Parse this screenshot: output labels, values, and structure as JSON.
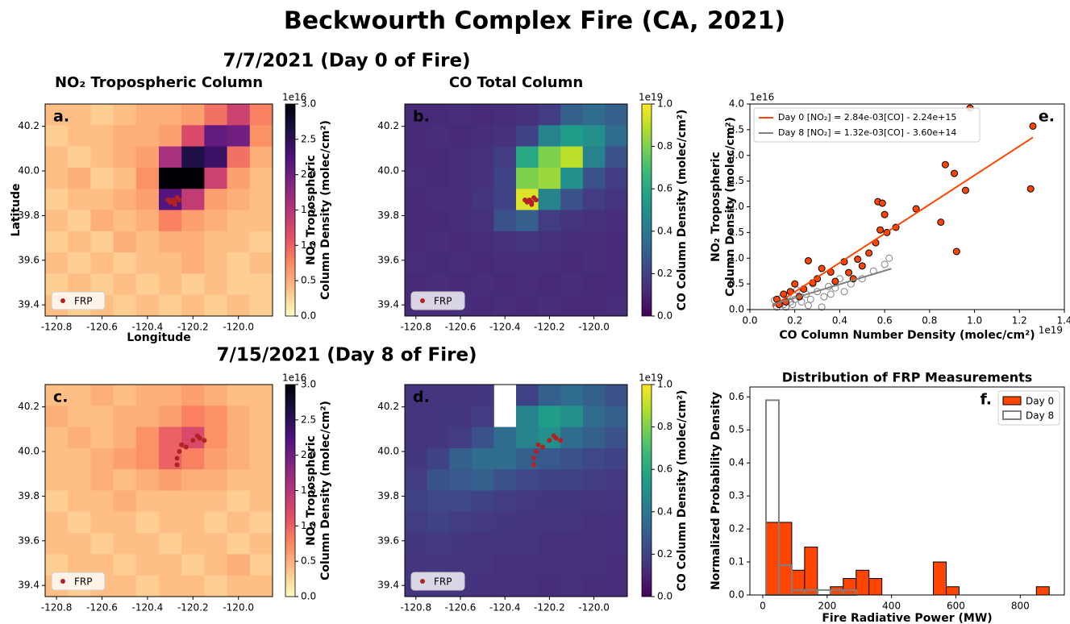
{
  "title": "Beckwourth Complex Fire (CA, 2021)",
  "row_titles": [
    "7/7/2021 (Day 0 of Fire)",
    "7/15/2021 (Day 8 of Fire)"
  ],
  "column_titles": [
    "NO₂ Tropospheric Column",
    "CO Total Column"
  ],
  "chart_data": [
    {
      "type": "heatmap",
      "panel_label": "a.",
      "xlabel": "Longitude",
      "ylabel": "Latitude",
      "xlim": [
        -120.85,
        -119.85
      ],
      "ylim": [
        39.35,
        40.3
      ],
      "xticks": [
        -120.8,
        -120.6,
        -120.4,
        -120.2,
        {
          "value": -120.0,
          "label": "-120.0"
        }
      ],
      "yticks": [
        39.4,
        39.6,
        39.8,
        {
          "value": 40.0,
          "label": "40.0"
        },
        40.2
      ],
      "colormap": "magma_r",
      "zlim": [
        0,
        3
      ],
      "colorbar": {
        "label": [
          "NO₂ Tropospheric",
          "Column Density (molec/cm²)"
        ],
        "offset": "1e16",
        "ticks": [
          {
            "value": 0,
            "label": "0.0"
          },
          0.5,
          {
            "value": 1,
            "label": "1.0"
          },
          1.5,
          {
            "value": 2,
            "label": "2.0"
          },
          2.5,
          {
            "value": 3,
            "label": "3.0"
          }
        ]
      },
      "z": [
        [
          0.4,
          0.4,
          0.3,
          0.4,
          0.5,
          0.5,
          0.6,
          0.9,
          1.3,
          0.8
        ],
        [
          0.3,
          0.4,
          0.4,
          0.5,
          0.5,
          0.6,
          1.2,
          2.1,
          2.0,
          0.7
        ],
        [
          0.4,
          0.3,
          0.4,
          0.5,
          0.6,
          1.6,
          2.6,
          2.4,
          0.9,
          0.5
        ],
        [
          0.4,
          0.5,
          0.3,
          0.4,
          0.7,
          3.0,
          3.0,
          1.3,
          0.6,
          0.4
        ],
        [
          0.3,
          0.4,
          0.4,
          0.5,
          0.6,
          2.2,
          1.4,
          0.6,
          0.5,
          0.4
        ],
        [
          0.4,
          0.3,
          0.5,
          0.4,
          0.5,
          0.8,
          0.6,
          0.5,
          0.4,
          0.4
        ],
        [
          0.3,
          0.4,
          0.3,
          0.5,
          0.4,
          0.5,
          0.5,
          0.4,
          0.4,
          0.3
        ],
        [
          0.4,
          0.3,
          0.4,
          0.3,
          0.4,
          0.4,
          0.5,
          0.4,
          0.3,
          0.4
        ],
        [
          0.3,
          0.4,
          0.3,
          0.4,
          0.3,
          0.4,
          0.3,
          0.4,
          0.3,
          0.3
        ],
        [
          0.4,
          0.3,
          0.4,
          0.3,
          0.4,
          0.3,
          0.4,
          0.3,
          0.4,
          0.3
        ]
      ],
      "points": {
        "name": "FRP",
        "color": "#b22222",
        "x": [
          -120.31,
          -120.29,
          -120.28,
          -120.27,
          -120.3,
          -120.26,
          -120.28
        ],
        "y": [
          39.87,
          39.87,
          39.86,
          39.88,
          39.86,
          39.87,
          39.85
        ]
      },
      "legend": "lower left"
    },
    {
      "type": "heatmap",
      "panel_label": "b.",
      "xlim": [
        -120.85,
        -119.85
      ],
      "ylim": [
        39.35,
        40.3
      ],
      "xticks": [
        -120.8,
        -120.6,
        -120.4,
        -120.2,
        {
          "value": -120.0,
          "label": "-120.0"
        }
      ],
      "yticks": [
        39.4,
        39.6,
        39.8,
        {
          "value": 40.0,
          "label": "40.0"
        },
        40.2
      ],
      "colormap": "viridis",
      "zlim": [
        0,
        1
      ],
      "colorbar": {
        "label": [
          "CO Column Density (molec/cm²)"
        ],
        "offset": "1e19",
        "ticks": [
          {
            "value": 0,
            "label": "0.0"
          },
          0.2,
          0.4,
          0.6,
          0.8,
          {
            "value": 1,
            "label": "1.0"
          }
        ]
      },
      "z": [
        [
          0.12,
          0.12,
          0.13,
          0.12,
          0.13,
          0.14,
          0.18,
          0.3,
          0.35,
          0.3
        ],
        [
          0.12,
          0.13,
          0.12,
          0.13,
          0.14,
          0.2,
          0.45,
          0.55,
          0.5,
          0.35
        ],
        [
          0.12,
          0.12,
          0.13,
          0.14,
          0.18,
          0.6,
          0.8,
          0.9,
          0.45,
          0.25
        ],
        [
          0.13,
          0.12,
          0.13,
          0.14,
          0.2,
          0.8,
          0.85,
          0.5,
          0.25,
          0.18
        ],
        [
          0.12,
          0.13,
          0.13,
          0.15,
          0.2,
          0.95,
          0.45,
          0.25,
          0.18,
          0.15
        ],
        [
          0.12,
          0.12,
          0.13,
          0.14,
          0.25,
          0.3,
          0.18,
          0.15,
          0.14,
          0.13
        ],
        [
          0.12,
          0.13,
          0.12,
          0.13,
          0.14,
          0.15,
          0.14,
          0.13,
          0.13,
          0.12
        ],
        [
          0.13,
          0.12,
          0.13,
          0.12,
          0.13,
          0.13,
          0.13,
          0.12,
          0.13,
          0.12
        ],
        [
          0.12,
          0.13,
          0.12,
          0.13,
          0.12,
          0.13,
          0.12,
          0.13,
          0.12,
          0.12
        ],
        [
          0.12,
          0.12,
          0.13,
          0.12,
          0.13,
          0.12,
          0.13,
          0.12,
          0.12,
          0.13
        ]
      ],
      "points": {
        "name": "FRP",
        "color": "#b22222",
        "x": [
          -120.31,
          -120.29,
          -120.28,
          -120.27,
          -120.3,
          -120.26,
          -120.28
        ],
        "y": [
          39.87,
          39.87,
          39.86,
          39.88,
          39.86,
          39.87,
          39.85
        ]
      },
      "legend": "lower left"
    },
    {
      "type": "scatter",
      "panel_label": "e.",
      "xlabel": "CO Column Number Density (molec/cm²)",
      "ylabel": [
        "NO₂ Tropospheric",
        "Column Density (molec/cm²)"
      ],
      "x_offset": "1e19",
      "y_offset": "1e16",
      "xlim": [
        0,
        1.4
      ],
      "ylim": [
        0,
        4.0
      ],
      "xticks": [
        {
          "value": 0,
          "label": "0.0"
        },
        0.2,
        0.4,
        0.6,
        0.8,
        {
          "value": 1,
          "label": "1.0"
        },
        1.2,
        1.4
      ],
      "yticks": [
        {
          "value": 0,
          "label": "0.0"
        },
        0.5,
        {
          "value": 1,
          "label": "1.0"
        },
        1.5,
        {
          "value": 2,
          "label": "2.0"
        },
        2.5,
        {
          "value": 3,
          "label": "3.0"
        },
        3.5,
        {
          "value": 4,
          "label": "4.0"
        }
      ],
      "series": [
        {
          "color": "#ff4500",
          "edgecolor": "#000000",
          "x": [
            0.98,
            1.26,
            0.87,
            0.91,
            0.96,
            1.25,
            0.74,
            0.57,
            0.59,
            0.6,
            0.65,
            0.58,
            0.85,
            0.61,
            0.92,
            0.56,
            0.53,
            0.42,
            0.48,
            0.5,
            0.44,
            0.36,
            0.3,
            0.26,
            0.32,
            0.28,
            0.2,
            0.15,
            0.12,
            0.18,
            0.22,
            0.13,
            0.38,
            0.46,
            0.24,
            0.16
          ],
          "values": [
            3.92,
            3.57,
            2.82,
            2.65,
            2.32,
            2.35,
            1.96,
            2.1,
            2.07,
            1.85,
            1.6,
            1.55,
            1.7,
            1.5,
            1.13,
            1.3,
            1.1,
            0.93,
            0.98,
            0.85,
            0.72,
            0.73,
            0.6,
            0.95,
            0.8,
            0.52,
            0.5,
            0.3,
            0.2,
            0.35,
            0.25,
            0.1,
            0.55,
            0.6,
            0.4,
            0.15
          ]
        },
        {
          "color": "none",
          "edgecolor": "#808080",
          "x": [
            0.62,
            0.6,
            0.55,
            0.5,
            0.45,
            0.4,
            0.38,
            0.35,
            0.3,
            0.28,
            0.25,
            0.22,
            0.2,
            0.18,
            0.15,
            0.13,
            0.12,
            0.11,
            0.14,
            0.17,
            0.19,
            0.23,
            0.27,
            0.33,
            0.36,
            0.42,
            0.32,
            0.26,
            0.16,
            0.21
          ],
          "values": [
            1.0,
            0.88,
            0.75,
            0.6,
            0.5,
            0.6,
            0.42,
            0.45,
            0.35,
            0.5,
            0.3,
            0.25,
            0.2,
            0.15,
            0.1,
            0.12,
            0.05,
            0.18,
            0.22,
            0.28,
            0.1,
            0.15,
            0.2,
            0.25,
            0.3,
            0.35,
            0.05,
            0.08,
            0.05,
            0.38
          ]
        }
      ],
      "fits": [
        {
          "name": "Day 0 [NO₂] = 2.84e-03[CO] - 2.24e+15",
          "color": "#ff4500",
          "x": [
            0.1,
            1.26
          ],
          "values": [
            0.06,
            3.35
          ]
        },
        {
          "name": "Day 8 [NO₂] = 1.32e-03[CO] - 3.60e+14",
          "color": "#808080",
          "x": [
            0.1,
            0.63
          ],
          "values": [
            0.096,
            0.796
          ]
        }
      ],
      "legend": "upper left"
    },
    {
      "type": "heatmap",
      "panel_label": "c.",
      "xlim": [
        -120.85,
        -119.85
      ],
      "ylim": [
        39.35,
        40.3
      ],
      "xticks": [
        -120.8,
        -120.6,
        -120.4,
        -120.2,
        {
          "value": -120.0,
          "label": "-120.0"
        }
      ],
      "yticks": [
        39.4,
        39.6,
        39.8,
        {
          "value": 40.0,
          "label": "40.0"
        },
        40.2
      ],
      "colormap": "magma_r",
      "zlim": [
        0,
        3
      ],
      "colorbar": {
        "label": [
          "NO₂ Tropospheric",
          "Column Density (molec/cm²)"
        ],
        "offset": "1e16",
        "ticks": [
          {
            "value": 0,
            "label": "0.0"
          },
          0.5,
          {
            "value": 1,
            "label": "1.0"
          },
          1.5,
          {
            "value": 2,
            "label": "2.0"
          },
          2.5,
          {
            "value": 3,
            "label": "3.0"
          }
        ]
      },
      "z": [
        [
          0.4,
          0.4,
          0.5,
          0.4,
          0.5,
          0.5,
          0.6,
          0.5,
          0.4,
          0.4
        ],
        [
          0.5,
          0.4,
          0.4,
          0.5,
          0.5,
          0.6,
          0.8,
          0.7,
          0.5,
          0.4
        ],
        [
          0.4,
          0.5,
          0.4,
          0.5,
          0.7,
          1.0,
          1.2,
          0.7,
          0.5,
          0.4
        ],
        [
          0.4,
          0.4,
          0.5,
          0.6,
          0.7,
          1.0,
          0.8,
          0.6,
          0.5,
          0.4
        ],
        [
          0.4,
          0.4,
          0.5,
          0.4,
          0.5,
          0.6,
          0.5,
          0.5,
          0.4,
          0.4
        ],
        [
          0.3,
          0.4,
          0.4,
          0.5,
          0.4,
          0.4,
          0.4,
          0.4,
          0.3,
          0.4
        ],
        [
          0.4,
          0.3,
          0.4,
          0.4,
          0.3,
          0.4,
          0.4,
          0.3,
          0.4,
          0.3
        ],
        [
          0.4,
          0.4,
          0.3,
          0.4,
          0.4,
          0.3,
          0.4,
          0.4,
          0.3,
          0.4
        ],
        [
          0.3,
          0.4,
          0.4,
          0.3,
          0.4,
          0.4,
          0.3,
          0.4,
          0.5,
          0.3
        ],
        [
          0.4,
          0.3,
          0.4,
          0.4,
          0.3,
          0.4,
          0.4,
          0.3,
          0.4,
          0.4
        ]
      ],
      "points": {
        "name": "FRP",
        "color": "#b22222",
        "x": [
          -120.27,
          -120.26,
          -120.25,
          -120.23,
          -120.2,
          -120.17,
          -120.15,
          -120.18,
          -120.27
        ],
        "y": [
          39.97,
          40.0,
          40.03,
          40.02,
          40.05,
          40.06,
          40.05,
          40.07,
          39.94
        ]
      },
      "legend": "lower left"
    },
    {
      "type": "heatmap",
      "panel_label": "d.",
      "xlim": [
        -120.85,
        -119.85
      ],
      "ylim": [
        39.35,
        40.3
      ],
      "xticks": [
        -120.8,
        -120.6,
        -120.4,
        -120.2,
        {
          "value": -120.0,
          "label": "-120.0"
        }
      ],
      "yticks": [
        39.4,
        39.6,
        39.8,
        {
          "value": 40.0,
          "label": "40.0"
        },
        40.2
      ],
      "colormap": "viridis",
      "zlim": [
        0,
        1
      ],
      "colorbar": {
        "label": [
          "CO Column Density (molec/cm²)"
        ],
        "offset": "1e19",
        "ticks": [
          {
            "value": 0,
            "label": "0.0"
          },
          0.2,
          0.4,
          0.6,
          0.8,
          {
            "value": 1,
            "label": "1.0"
          }
        ]
      },
      "z": [
        [
          0.15,
          0.15,
          0.15,
          0.16,
          null,
          0.2,
          0.3,
          0.35,
          0.3,
          0.25
        ],
        [
          0.15,
          0.16,
          0.16,
          0.18,
          null,
          0.45,
          0.55,
          0.5,
          0.35,
          0.3
        ],
        [
          0.15,
          0.16,
          0.18,
          0.25,
          0.35,
          0.45,
          0.5,
          0.35,
          0.3,
          0.25
        ],
        [
          0.16,
          0.2,
          0.3,
          0.35,
          0.35,
          0.3,
          0.28,
          0.25,
          0.22,
          0.2
        ],
        [
          0.18,
          0.25,
          0.28,
          0.3,
          0.25,
          0.22,
          0.2,
          0.2,
          0.18,
          0.17
        ],
        [
          0.2,
          0.22,
          0.22,
          0.2,
          0.18,
          0.17,
          0.16,
          0.16,
          0.15,
          0.15
        ],
        [
          0.18,
          0.2,
          0.18,
          0.17,
          0.16,
          0.15,
          0.15,
          0.15,
          0.14,
          0.14
        ],
        [
          0.16,
          0.17,
          0.16,
          0.15,
          0.15,
          0.15,
          0.14,
          0.14,
          0.14,
          0.14
        ],
        [
          0.15,
          0.16,
          0.15,
          0.15,
          0.14,
          0.14,
          0.14,
          0.14,
          0.14,
          0.13
        ],
        [
          0.15,
          0.15,
          0.15,
          0.14,
          0.14,
          0.14,
          0.13,
          0.14,
          0.13,
          0.13
        ]
      ],
      "points": {
        "name": "FRP",
        "color": "#b22222",
        "x": [
          -120.27,
          -120.26,
          -120.25,
          -120.23,
          -120.2,
          -120.17,
          -120.15,
          -120.18,
          -120.27
        ],
        "y": [
          39.97,
          40.0,
          40.03,
          40.02,
          40.05,
          40.06,
          40.05,
          40.07,
          39.94
        ]
      },
      "legend": "lower left"
    },
    {
      "type": "histogram",
      "title": "Distribution of FRP Measurements",
      "panel_label": "f.",
      "xlabel": "Fire Radiative Power (MW)",
      "ylabel": "Normalized Probability Density",
      "xlim": [
        -40,
        937
      ],
      "ylim": [
        0,
        0.63
      ],
      "xticks": [
        0,
        200,
        400,
        600,
        800
      ],
      "yticks": [
        {
          "value": 0,
          "label": "0.0"
        },
        0.1,
        0.2,
        0.3,
        0.4,
        0.5,
        0.6
      ],
      "bins": [
        10,
        50,
        90,
        130,
        170,
        210,
        250,
        290,
        330,
        370,
        410,
        450,
        490,
        530,
        570,
        610,
        650,
        690,
        730,
        770,
        810,
        850,
        890
      ],
      "series": [
        {
          "name": "Day 0",
          "color": "#ff4500",
          "edgecolor": "#000000",
          "values": [
            0.22,
            0.22,
            0.075,
            0.145,
            0,
            0.025,
            0.05,
            0.075,
            0.05,
            0,
            0,
            0,
            0,
            0.1,
            0.025,
            0,
            0,
            0,
            0,
            0,
            0,
            0.025
          ]
        },
        {
          "name": "Day 8",
          "color": "none",
          "edgecolor": "#808080",
          "values": [
            0.59,
            0.09,
            0.015,
            0.015,
            0.015,
            0.015,
            0.015,
            0,
            0,
            0,
            0,
            0,
            0,
            0,
            0,
            0,
            0,
            0,
            0,
            0,
            0,
            0
          ]
        }
      ],
      "legend": "upper right"
    }
  ]
}
